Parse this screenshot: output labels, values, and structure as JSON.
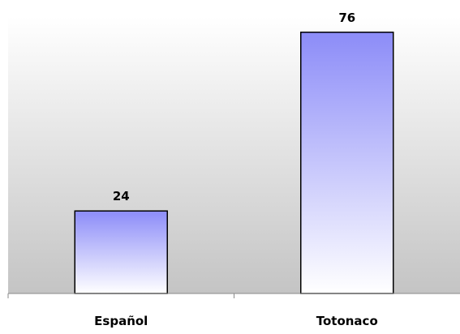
{
  "chart_data": {
    "type": "bar",
    "categories": [
      "Español",
      "Totonaco"
    ],
    "values": [
      24,
      76
    ],
    "data_labels": [
      "24",
      "76"
    ],
    "title": "",
    "xlabel": "",
    "ylabel": "",
    "ylim": [
      0,
      100
    ],
    "grid": false,
    "legend": "none"
  },
  "colors": {
    "bar_top": "#8c8cf8",
    "bar_bottom": "#ffffff",
    "bar_border": "#000000",
    "plot_bg_top": "#ffffff",
    "plot_bg_bottom": "#c4c4c4",
    "axis": "#8a8a8a"
  }
}
